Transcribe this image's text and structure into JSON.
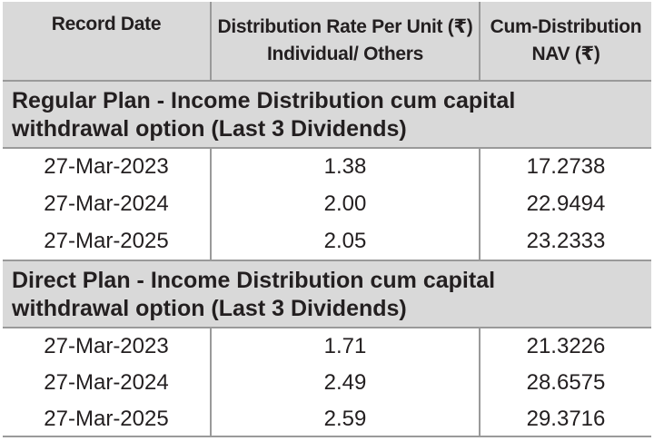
{
  "headers": {
    "record_date": "Record Date",
    "rate_line1": "Distribution Rate Per Unit (₹)",
    "rate_line2": "Individual/ Others",
    "nav_line1": "Cum-Distribution",
    "nav_line2": "NAV (₹)"
  },
  "sections": [
    {
      "title_line1": "Regular Plan - Income Distribution cum capital",
      "title_line2": "withdrawal option (Last 3 Dividends)",
      "rows": [
        {
          "date": "27-Mar-2023",
          "rate": "1.38",
          "nav": "17.2738"
        },
        {
          "date": "27-Mar-2024",
          "rate": "2.00",
          "nav": "22.9494"
        },
        {
          "date": "27-Mar-2025",
          "rate": "2.05",
          "nav": "23.2333"
        }
      ]
    },
    {
      "title_line1": "Direct Plan - Income Distribution cum capital",
      "title_line2": "withdrawal option (Last 3 Dividends)",
      "rows": [
        {
          "date": "27-Mar-2023",
          "rate": "1.71",
          "nav": "21.3226"
        },
        {
          "date": "27-Mar-2024",
          "rate": "2.49",
          "nav": "28.6575"
        },
        {
          "date": "27-Mar-2025",
          "rate": "2.59",
          "nav": "29.3716"
        }
      ]
    }
  ]
}
